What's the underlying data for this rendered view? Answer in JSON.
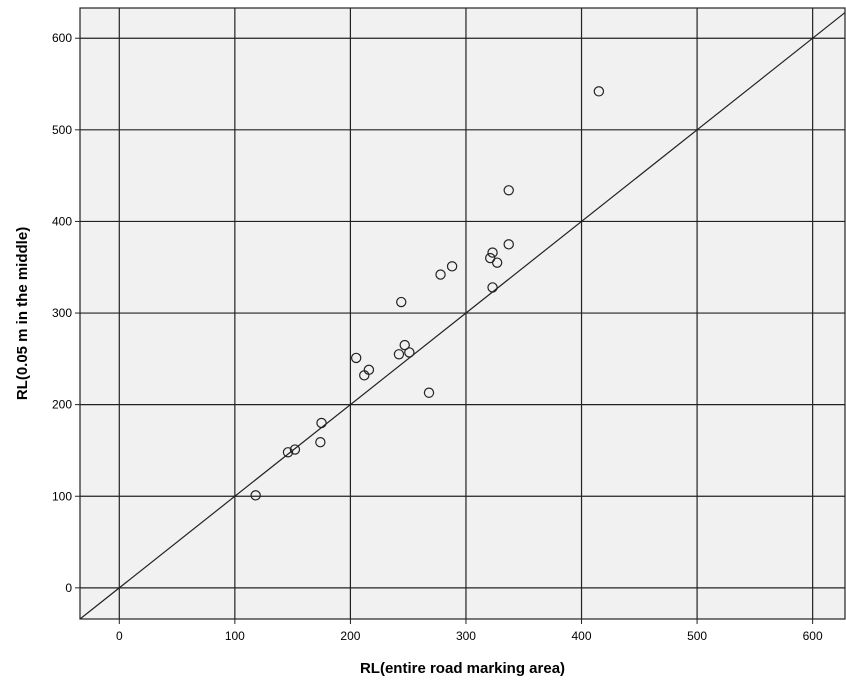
{
  "chart_data": {
    "type": "scatter",
    "xlabel": "RL(entire road marking area)",
    "ylabel": "RL(0.05 m in the middle)",
    "xlim": [
      -34,
      628
    ],
    "ylim": [
      -34,
      633
    ],
    "xticks": [
      0,
      100,
      200,
      300,
      400,
      500,
      600
    ],
    "yticks": [
      0,
      100,
      200,
      300,
      400,
      500,
      600
    ],
    "grid": true,
    "reference_line": "y = x",
    "colors": {
      "plot_background": "#f1f1f1",
      "grid": "#222222",
      "marker_edge": "#222222"
    },
    "points": [
      {
        "x": 118,
        "y": 101
      },
      {
        "x": 146,
        "y": 148
      },
      {
        "x": 152,
        "y": 151
      },
      {
        "x": 174,
        "y": 159
      },
      {
        "x": 175,
        "y": 180
      },
      {
        "x": 205,
        "y": 251
      },
      {
        "x": 212,
        "y": 232
      },
      {
        "x": 216,
        "y": 238
      },
      {
        "x": 242,
        "y": 255
      },
      {
        "x": 244,
        "y": 312
      },
      {
        "x": 247,
        "y": 265
      },
      {
        "x": 251,
        "y": 257
      },
      {
        "x": 268,
        "y": 213
      },
      {
        "x": 278,
        "y": 342
      },
      {
        "x": 288,
        "y": 351
      },
      {
        "x": 321,
        "y": 360
      },
      {
        "x": 323,
        "y": 328
      },
      {
        "x": 323,
        "y": 366
      },
      {
        "x": 327,
        "y": 355
      },
      {
        "x": 337,
        "y": 375
      },
      {
        "x": 337,
        "y": 434
      },
      {
        "x": 415,
        "y": 542
      }
    ]
  }
}
